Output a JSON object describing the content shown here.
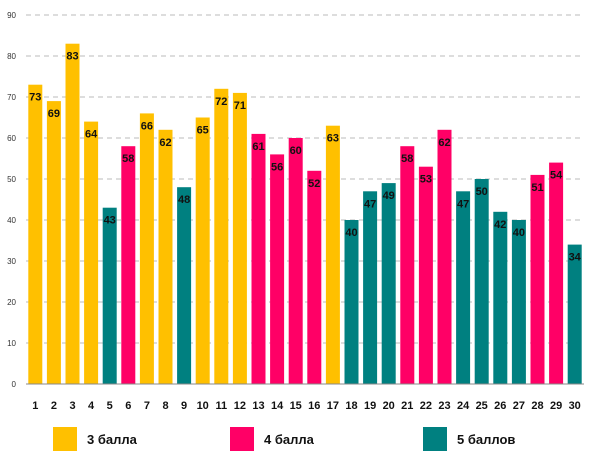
{
  "chart_data": {
    "type": "bar",
    "title": "",
    "xlabel": "",
    "ylabel": "",
    "ylim": [
      0,
      90
    ],
    "y_ticks": [
      0,
      10,
      20,
      30,
      40,
      50,
      60,
      70,
      80,
      90
    ],
    "grid": "horizontal dashed",
    "legend_position": "bottom",
    "categories": [
      "1",
      "2",
      "3",
      "4",
      "5",
      "6",
      "7",
      "8",
      "9",
      "10",
      "11",
      "12",
      "13",
      "14",
      "15",
      "16",
      "17",
      "18",
      "19",
      "20",
      "21",
      "22",
      "23",
      "24",
      "25",
      "26",
      "27",
      "28",
      "29",
      "30"
    ],
    "values": [
      73,
      69,
      83,
      64,
      43,
      58,
      66,
      62,
      48,
      65,
      72,
      71,
      61,
      56,
      60,
      52,
      63,
      40,
      47,
      49,
      58,
      53,
      62,
      47,
      50,
      42,
      40,
      51,
      54,
      34
    ],
    "groups": [
      0,
      0,
      0,
      0,
      2,
      1,
      0,
      0,
      2,
      0,
      0,
      0,
      1,
      1,
      1,
      1,
      0,
      2,
      2,
      2,
      1,
      1,
      1,
      2,
      2,
      2,
      2,
      1,
      1,
      2
    ],
    "series": [
      {
        "name": "3 балла",
        "color": "#FFC000"
      },
      {
        "name": "4 балла",
        "color": "#FF0066"
      },
      {
        "name": "5 баллов",
        "color": "#008080"
      }
    ]
  }
}
